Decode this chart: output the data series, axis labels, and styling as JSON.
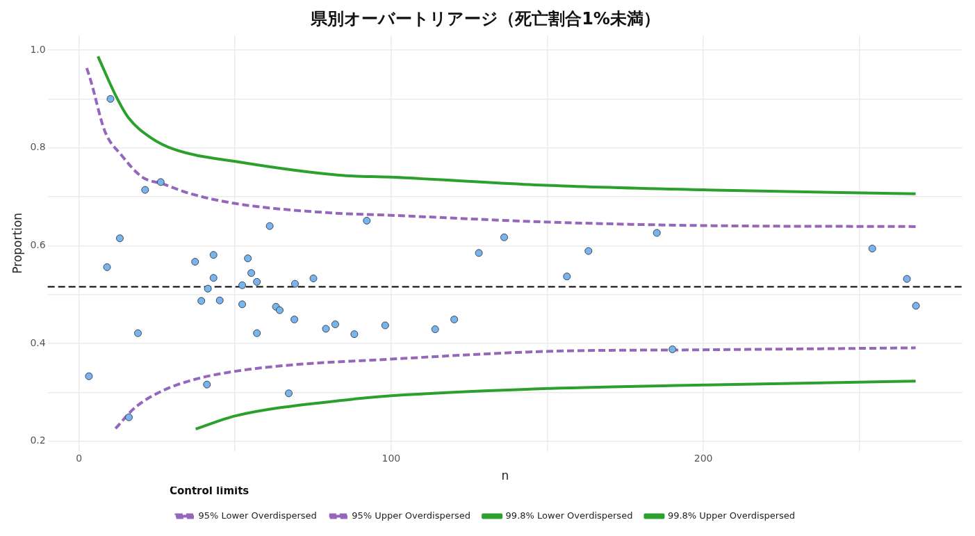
{
  "chart_data": {
    "type": "scatter",
    "title": "県別オーバートリアージ（死亡割合1%未満）",
    "xlabel": "n",
    "ylabel": "Proportion",
    "legend_title": "Control limits",
    "legend": "bottom",
    "grid": true,
    "xlim": [
      -10,
      283
    ],
    "xticks": [
      0,
      {
        "value": 50,
        "label": null
      },
      100,
      {
        "value": 150,
        "label": null
      },
      200,
      {
        "value": 250,
        "label": null
      }
    ],
    "ylim": [
      0.18,
      1.03
    ],
    "yticks": [
      0.2,
      {
        "value": 0.3,
        "label": null
      },
      0.4,
      {
        "value": 0.5,
        "label": null
      },
      0.6,
      {
        "value": 0.7,
        "label": null
      },
      0.8,
      {
        "value": 0.9,
        "label": null
      },
      {
        "value": 1.0,
        "label": "1.0"
      }
    ],
    "ref_lines": [
      {
        "axis": "y",
        "value": 0.516,
        "label": null,
        "color": "#000000",
        "line_style": "dashed"
      }
    ],
    "series": [
      {
        "color": "#78b4ee",
        "marker": "circle",
        "x": [
          3.2,
          9.0,
          10.1,
          13.1,
          16.0,
          18.9,
          21.2,
          26.2,
          37.2,
          39.2,
          41.0,
          41.3,
          43.1,
          43.1,
          45.1,
          52.3,
          52.3,
          54.1,
          55.2,
          57.0,
          57.0,
          61.1,
          63.1,
          64.3,
          67.2,
          69.0,
          69.2,
          75.1,
          79.1,
          82.1,
          88.2,
          92.2,
          98.1,
          114.1,
          120.2,
          128.1,
          136.2,
          156.3,
          163.2,
          185.1,
          190.1,
          254.1,
          265.2,
          268.1
        ],
        "values": [
          0.333,
          0.556,
          0.9,
          0.615,
          0.249,
          0.421,
          0.714,
          0.73,
          0.567,
          0.487,
          0.316,
          0.512,
          0.581,
          0.534,
          0.488,
          0.519,
          0.48,
          0.574,
          0.544,
          0.526,
          0.421,
          0.64,
          0.475,
          0.468,
          0.298,
          0.449,
          0.522,
          0.533,
          0.43,
          0.439,
          0.419,
          0.651,
          0.437,
          0.429,
          0.449,
          0.585,
          0.617,
          0.537,
          0.589,
          0.626,
          0.388,
          0.594,
          0.532,
          0.477
        ]
      },
      {
        "type": "line",
        "name": "95% Lower Overdispersed",
        "color": "#9467bd",
        "marker": "none",
        "line_style": "dashed",
        "x": [
          11.7,
          18,
          27,
          38,
          50,
          68,
          100,
          151,
          200,
          268
        ],
        "values": [
          0.226,
          0.269,
          0.304,
          0.328,
          0.343,
          0.356,
          0.368,
          0.384,
          0.387,
          0.391
        ]
      },
      {
        "type": "line",
        "name": "95% Upper Overdispersed",
        "color": "#9467bd",
        "marker": "none",
        "line_style": "dashed",
        "x": [
          2.5,
          3.8,
          8.3,
          13.5,
          20.3,
          27,
          35.3,
          50.2,
          80.5,
          100,
          151,
          200,
          268
        ],
        "values": [
          0.963,
          0.937,
          0.834,
          0.786,
          0.74,
          0.726,
          0.707,
          0.686,
          0.667,
          0.662,
          0.648,
          0.641,
          0.639
        ]
      },
      {
        "type": "line",
        "name": "99.8% Lower Overdispersed",
        "color": "#2ca02c",
        "marker": "none",
        "line_style": "solid",
        "x": [
          37.4,
          50.2,
          83.4,
          100,
          151,
          200,
          268
        ],
        "values": [
          0.225,
          0.252,
          0.283,
          0.293,
          0.308,
          0.315,
          0.323
        ]
      },
      {
        "type": "line",
        "name": "99.8% Upper Overdispersed",
        "color": "#2ca02c",
        "marker": "none",
        "line_style": "solid",
        "x": [
          6.1,
          12,
          15.8,
          23.2,
          30.9,
          50.2,
          83.4,
          100,
          151,
          200,
          268
        ],
        "values": [
          0.987,
          0.904,
          0.862,
          0.82,
          0.796,
          0.772,
          0.744,
          0.74,
          0.723,
          0.714,
          0.706
        ]
      }
    ]
  }
}
